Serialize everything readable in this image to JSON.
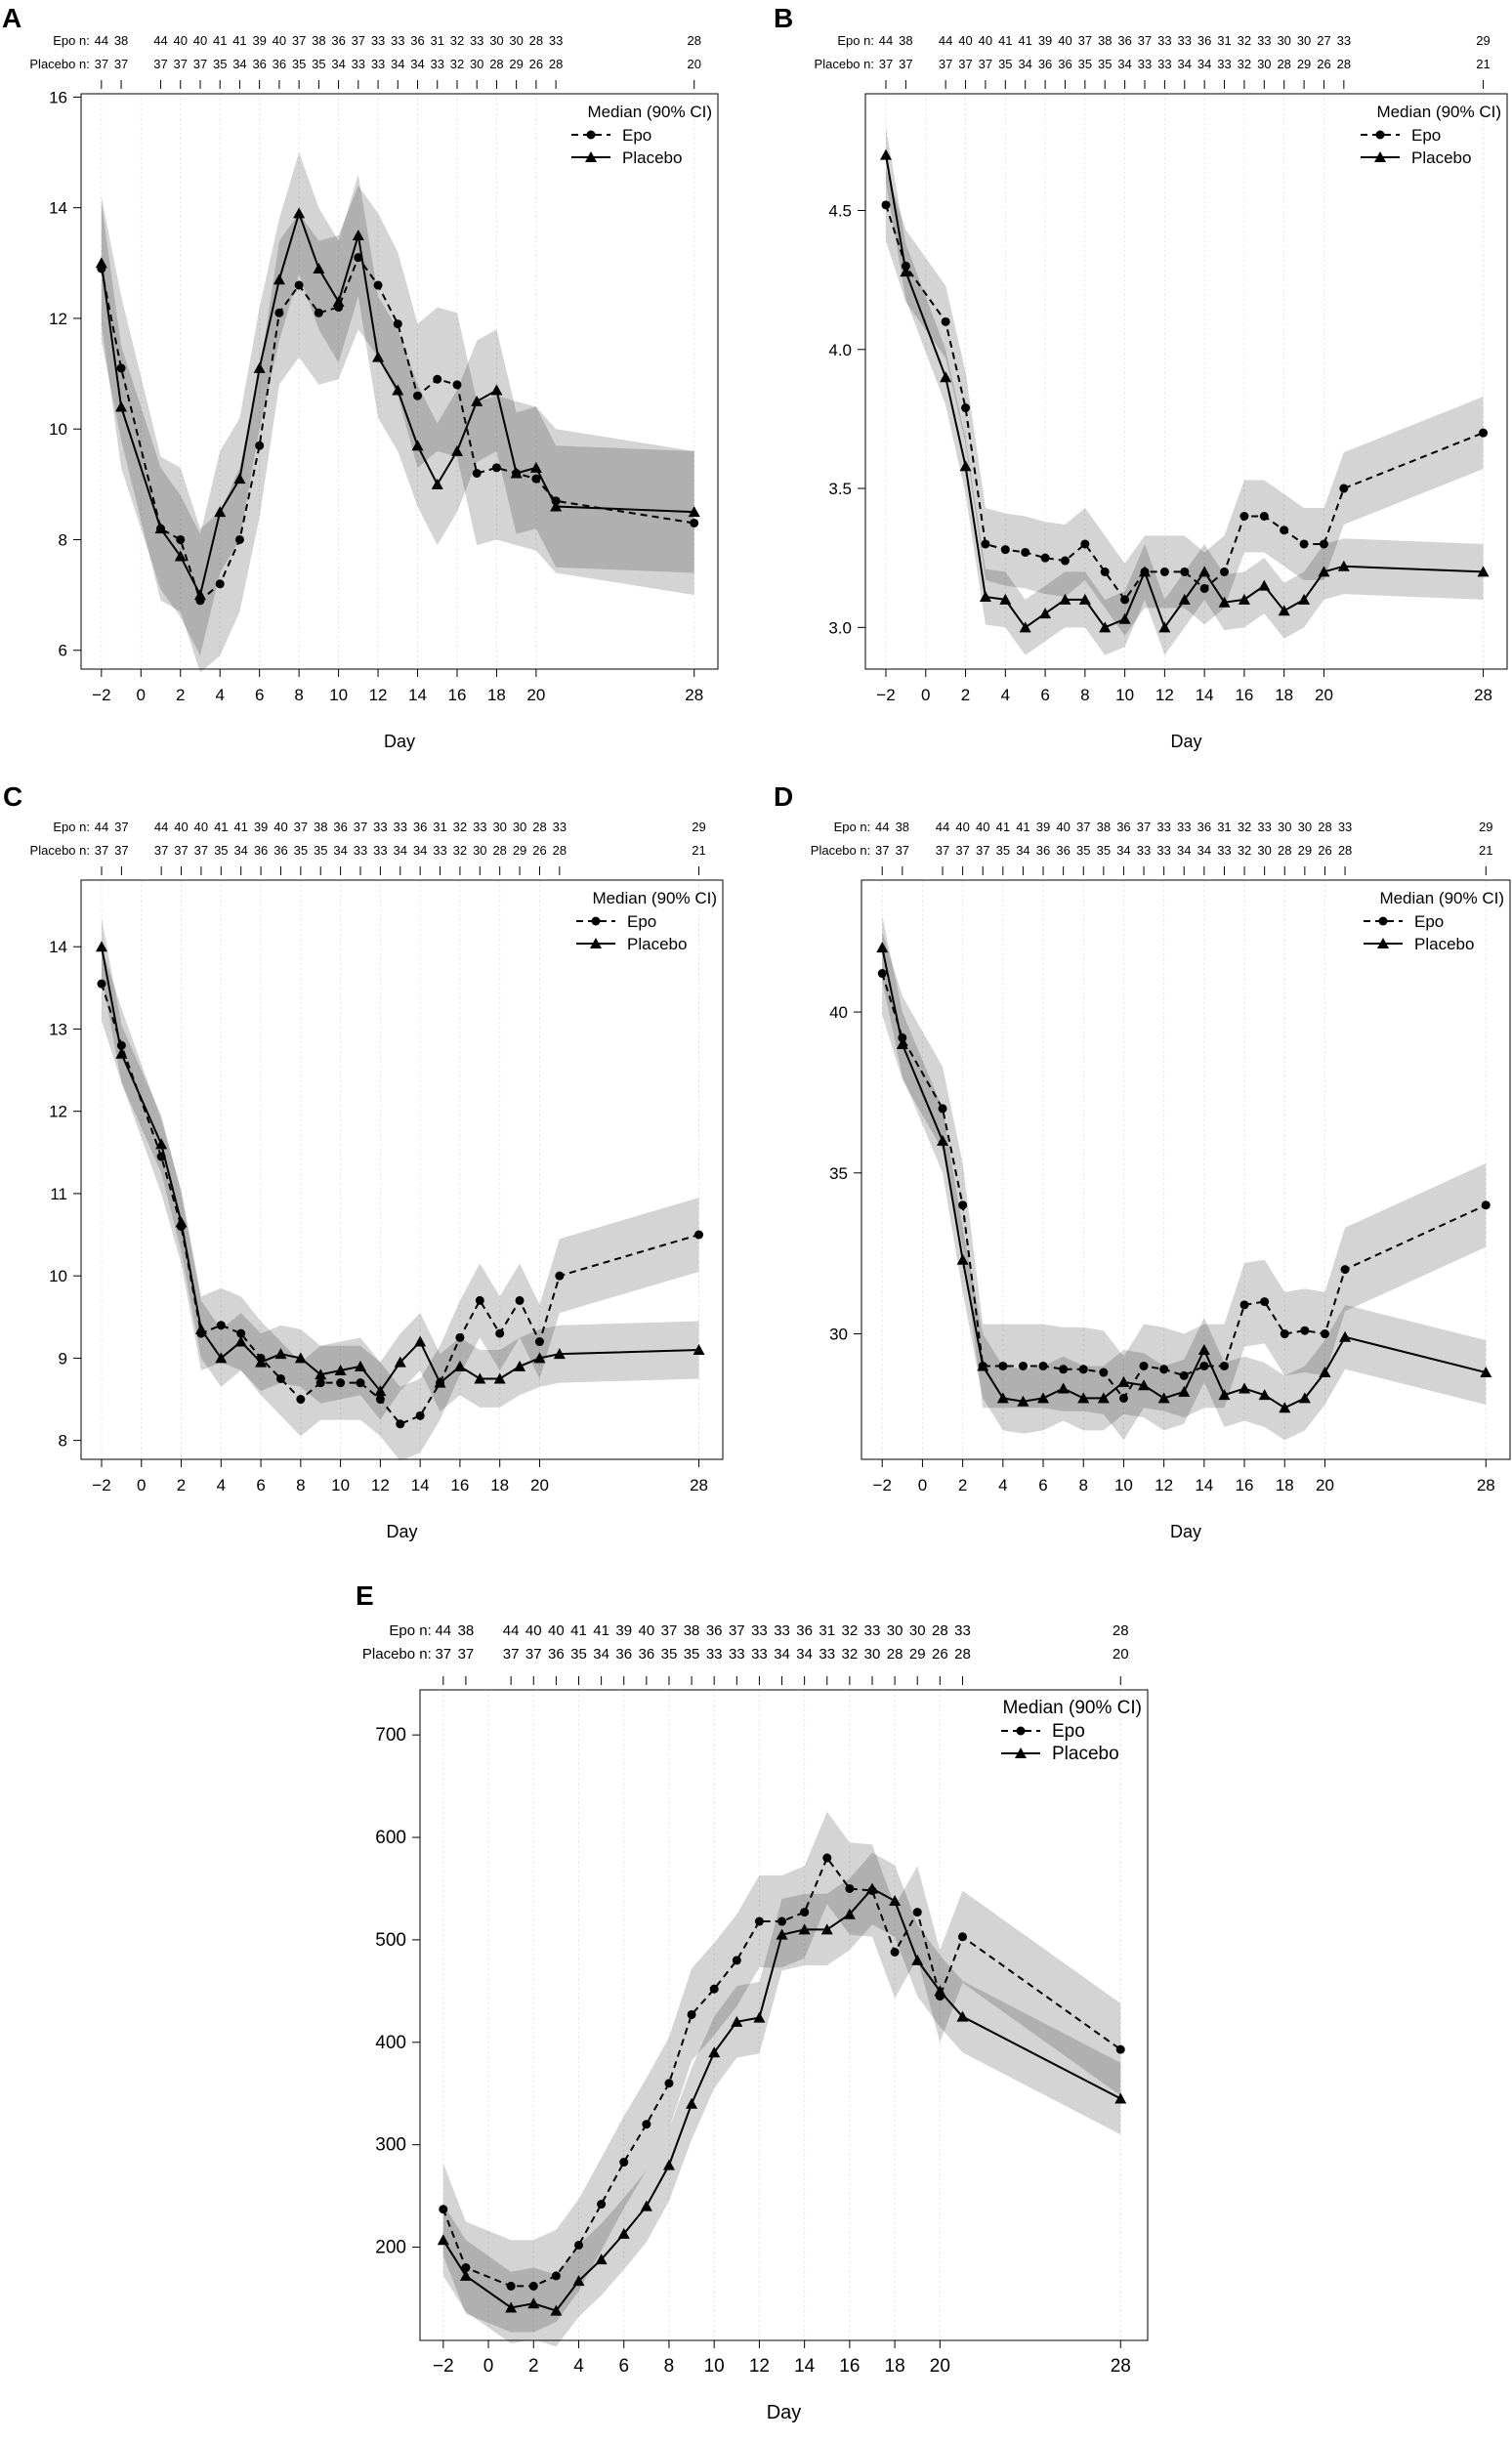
{
  "chart_data": [
    {
      "panel": "A",
      "type": "line",
      "xlabel": "Day",
      "ylabel": "",
      "x": [
        -2,
        -1,
        1,
        2,
        3,
        4,
        5,
        6,
        7,
        8,
        9,
        10,
        11,
        12,
        13,
        14,
        15,
        16,
        17,
        18,
        19,
        20,
        21,
        28
      ],
      "x_ticks": [
        -2,
        0,
        2,
        4,
        6,
        8,
        10,
        12,
        14,
        16,
        18,
        20,
        28
      ],
      "y_ticks": [
        6,
        8,
        10,
        12,
        14,
        16
      ],
      "ylim": [
        5.66,
        16.06
      ],
      "xlim": [
        -3.03,
        29.2
      ],
      "legend_title": "Median (90% CI)",
      "legend_position": "top-right",
      "n_rows": [
        {
          "label": "Epo n:",
          "values": [
            "44",
            "38",
            "44",
            "40",
            "40",
            "41",
            "41",
            "39",
            "40",
            "37",
            "38",
            "36",
            "37",
            "33",
            "33",
            "36",
            "31",
            "32",
            "33",
            "30",
            "30",
            "28",
            "33",
            "28"
          ]
        },
        {
          "label": "Placebo n:",
          "values": [
            "37",
            "37",
            "37",
            "37",
            "37",
            "35",
            "34",
            "36",
            "36",
            "35",
            "35",
            "34",
            "33",
            "33",
            "34",
            "34",
            "33",
            "32",
            "30",
            "28",
            "29",
            "26",
            "28",
            "20"
          ]
        }
      ],
      "series": [
        {
          "name": "Epo",
          "style": "dashed-circle",
          "ci_halfwidth": 1.3,
          "values": [
            12.9,
            11.1,
            8.2,
            8.0,
            6.9,
            7.2,
            8.0,
            9.7,
            12.1,
            12.6,
            12.1,
            12.2,
            13.1,
            12.6,
            11.9,
            10.6,
            10.9,
            10.8,
            9.2,
            9.3,
            9.2,
            9.1,
            8.7,
            8.3
          ]
        },
        {
          "name": "Placebo",
          "style": "solid-triangle",
          "ci_halfwidth": 1.1,
          "values": [
            13.0,
            10.4,
            8.2,
            7.7,
            7.0,
            8.5,
            9.1,
            11.1,
            12.7,
            13.9,
            12.9,
            12.3,
            13.5,
            11.3,
            10.7,
            9.7,
            9.0,
            9.6,
            10.5,
            10.7,
            9.2,
            9.3,
            8.6,
            8.5
          ]
        }
      ]
    },
    {
      "panel": "B",
      "type": "line",
      "xlabel": "Day",
      "ylabel": "",
      "x": [
        -2,
        -1,
        1,
        2,
        3,
        4,
        5,
        6,
        7,
        8,
        9,
        10,
        11,
        12,
        13,
        14,
        15,
        16,
        17,
        18,
        19,
        20,
        21,
        28
      ],
      "x_ticks": [
        -2,
        0,
        2,
        4,
        6,
        8,
        10,
        12,
        14,
        16,
        18,
        20,
        28
      ],
      "y_ticks": [
        "3.0",
        "3.5",
        "4.0",
        "4.5"
      ],
      "ylim": [
        2.85,
        4.92
      ],
      "xlim": [
        -3.03,
        29.2
      ],
      "legend_title": "Median (90% CI)",
      "legend_position": "top-right",
      "n_rows": [
        {
          "label": "Epo n:",
          "values": [
            "44",
            "38",
            "44",
            "40",
            "40",
            "41",
            "41",
            "39",
            "40",
            "37",
            "38",
            "36",
            "37",
            "33",
            "33",
            "36",
            "31",
            "32",
            "33",
            "30",
            "30",
            "27",
            "33",
            "29"
          ]
        },
        {
          "label": "Placebo n:",
          "values": [
            "37",
            "37",
            "37",
            "37",
            "37",
            "35",
            "34",
            "36",
            "36",
            "35",
            "35",
            "34",
            "33",
            "33",
            "34",
            "34",
            "33",
            "32",
            "30",
            "28",
            "29",
            "26",
            "28",
            "21"
          ]
        }
      ],
      "series": [
        {
          "name": "Epo",
          "style": "dashed-circle",
          "ci_halfwidth": 0.13,
          "values": [
            4.52,
            4.3,
            4.1,
            3.79,
            3.3,
            3.28,
            3.27,
            3.25,
            3.24,
            3.3,
            3.2,
            3.1,
            3.2,
            3.2,
            3.2,
            3.14,
            3.2,
            3.4,
            3.4,
            3.35,
            3.3,
            3.3,
            3.5,
            3.7
          ]
        },
        {
          "name": "Placebo",
          "style": "solid-triangle",
          "ci_halfwidth": 0.1,
          "values": [
            4.7,
            4.28,
            3.9,
            3.58,
            3.11,
            3.1,
            3.0,
            3.05,
            3.1,
            3.1,
            3.0,
            3.03,
            3.2,
            3.0,
            3.1,
            3.2,
            3.09,
            3.1,
            3.15,
            3.06,
            3.1,
            3.2,
            3.22,
            3.2
          ]
        }
      ]
    },
    {
      "panel": "C",
      "type": "line",
      "xlabel": "Day",
      "ylabel": "",
      "x": [
        -2,
        -1,
        1,
        2,
        3,
        4,
        5,
        6,
        7,
        8,
        9,
        10,
        11,
        12,
        13,
        14,
        15,
        16,
        17,
        18,
        19,
        20,
        21,
        28
      ],
      "x_ticks": [
        -2,
        0,
        2,
        4,
        6,
        8,
        10,
        12,
        14,
        16,
        18,
        20,
        28
      ],
      "y_ticks": [
        8,
        9,
        10,
        11,
        12,
        13,
        14
      ],
      "ylim": [
        7.77,
        14.81
      ],
      "xlim": [
        -3.03,
        29.2
      ],
      "legend_title": "Median (90% CI)",
      "legend_position": "top-right",
      "n_rows": [
        {
          "label": "Epo n:",
          "values": [
            "44",
            "37",
            "44",
            "40",
            "40",
            "41",
            "41",
            "39",
            "40",
            "37",
            "38",
            "36",
            "37",
            "33",
            "33",
            "36",
            "31",
            "32",
            "33",
            "30",
            "30",
            "28",
            "33",
            "29"
          ]
        },
        {
          "label": "Placebo n:",
          "values": [
            "37",
            "37",
            "37",
            "37",
            "37",
            "35",
            "34",
            "36",
            "36",
            "35",
            "35",
            "34",
            "33",
            "33",
            "34",
            "34",
            "33",
            "32",
            "30",
            "28",
            "29",
            "26",
            "28",
            "21"
          ]
        }
      ],
      "series": [
        {
          "name": "Epo",
          "style": "dashed-circle",
          "ci_halfwidth": 0.45,
          "values": [
            13.55,
            12.8,
            11.45,
            10.6,
            9.3,
            9.4,
            9.3,
            9.0,
            8.75,
            8.5,
            8.7,
            8.7,
            8.7,
            8.5,
            8.2,
            8.3,
            8.7,
            9.25,
            9.7,
            9.3,
            9.7,
            9.2,
            10.0,
            10.5
          ]
        },
        {
          "name": "Placebo",
          "style": "solid-triangle",
          "ci_halfwidth": 0.35,
          "values": [
            14.0,
            12.7,
            11.6,
            10.65,
            9.35,
            9.0,
            9.2,
            8.95,
            9.05,
            9.0,
            8.8,
            8.85,
            8.9,
            8.6,
            8.95,
            9.2,
            8.7,
            8.9,
            8.75,
            8.75,
            8.9,
            9.0,
            9.05,
            9.1
          ]
        }
      ]
    },
    {
      "panel": "D",
      "type": "line",
      "xlabel": "Day",
      "ylabel": "",
      "x": [
        -2,
        -1,
        1,
        2,
        3,
        4,
        5,
        6,
        7,
        8,
        9,
        10,
        11,
        12,
        13,
        14,
        15,
        16,
        17,
        18,
        19,
        20,
        21,
        28
      ],
      "x_ticks": [
        -2,
        0,
        2,
        4,
        6,
        8,
        10,
        12,
        14,
        16,
        18,
        20,
        28
      ],
      "y_ticks": [
        30,
        35,
        40
      ],
      "ylim": [
        26.1,
        44.1
      ],
      "xlim": [
        -3.03,
        29.2
      ],
      "legend_title": "Median (90% CI)",
      "legend_position": "top-right",
      "n_rows": [
        {
          "label": "Epo n:",
          "values": [
            "44",
            "38",
            "44",
            "40",
            "40",
            "41",
            "41",
            "39",
            "40",
            "37",
            "38",
            "36",
            "37",
            "33",
            "33",
            "36",
            "31",
            "32",
            "33",
            "30",
            "30",
            "28",
            "33",
            "29"
          ]
        },
        {
          "label": "Placebo n:",
          "values": [
            "37",
            "37",
            "37",
            "37",
            "37",
            "35",
            "34",
            "36",
            "36",
            "35",
            "35",
            "34",
            "33",
            "33",
            "34",
            "34",
            "33",
            "32",
            "30",
            "28",
            "29",
            "26",
            "28",
            "21"
          ]
        }
      ],
      "series": [
        {
          "name": "Epo",
          "style": "dashed-circle",
          "ci_halfwidth": 1.3,
          "values": [
            41.2,
            39.2,
            37,
            34,
            29,
            29,
            29,
            29,
            28.9,
            28.9,
            28.8,
            28.0,
            29,
            28.9,
            28.7,
            29,
            29,
            30.9,
            31.0,
            30.0,
            30.1,
            30,
            32,
            34
          ]
        },
        {
          "name": "Placebo",
          "style": "solid-triangle",
          "ci_halfwidth": 1.0,
          "values": [
            42,
            39,
            36,
            32.3,
            29,
            28,
            27.9,
            28,
            28.3,
            28,
            28,
            28.5,
            28.4,
            28,
            28.2,
            29.5,
            28.1,
            28.3,
            28.1,
            27.7,
            28,
            28.8,
            29.9,
            28.8
          ]
        }
      ]
    },
    {
      "panel": "E",
      "type": "line",
      "xlabel": "Day",
      "ylabel": "",
      "x": [
        -2,
        -1,
        1,
        2,
        3,
        4,
        5,
        6,
        7,
        8,
        9,
        10,
        11,
        12,
        13,
        14,
        15,
        16,
        17,
        18,
        19,
        20,
        21,
        28
      ],
      "x_ticks": [
        -2,
        0,
        2,
        4,
        6,
        8,
        10,
        12,
        14,
        16,
        18,
        20,
        28
      ],
      "y_ticks": [
        200,
        300,
        400,
        500,
        600,
        700
      ],
      "ylim": [
        109,
        744
      ],
      "xlim": [
        -3.03,
        29.2
      ],
      "legend_title": "Median (90% CI)",
      "legend_position": "top-right",
      "n_rows": [
        {
          "label": "Epo n:",
          "values": [
            "44",
            "38",
            "44",
            "40",
            "40",
            "41",
            "41",
            "39",
            "40",
            "37",
            "38",
            "36",
            "37",
            "33",
            "33",
            "36",
            "31",
            "32",
            "33",
            "30",
            "30",
            "28",
            "33",
            "28"
          ]
        },
        {
          "label": "Placebo n:",
          "values": [
            "37",
            "37",
            "37",
            "37",
            "36",
            "35",
            "34",
            "36",
            "36",
            "35",
            "35",
            "33",
            "33",
            "33",
            "34",
            "34",
            "33",
            "32",
            "30",
            "28",
            "29",
            "26",
            "28",
            "20"
          ]
        }
      ],
      "series": [
        {
          "name": "Epo",
          "style": "dashed-circle",
          "ci_halfwidth": 45,
          "values": [
            237,
            180,
            162,
            162,
            172,
            202,
            242,
            283,
            320,
            360,
            427,
            452,
            480,
            518,
            518,
            527,
            580,
            550,
            548,
            488,
            527,
            445,
            503,
            393
          ]
        },
        {
          "name": "Placebo",
          "style": "solid-triangle",
          "ci_halfwidth": 35,
          "values": [
            207,
            172,
            141,
            145,
            138,
            167,
            188,
            213,
            240,
            280,
            340,
            390,
            420,
            424,
            505,
            510,
            510,
            525,
            550,
            538,
            480,
            450,
            425,
            345
          ]
        }
      ]
    }
  ]
}
